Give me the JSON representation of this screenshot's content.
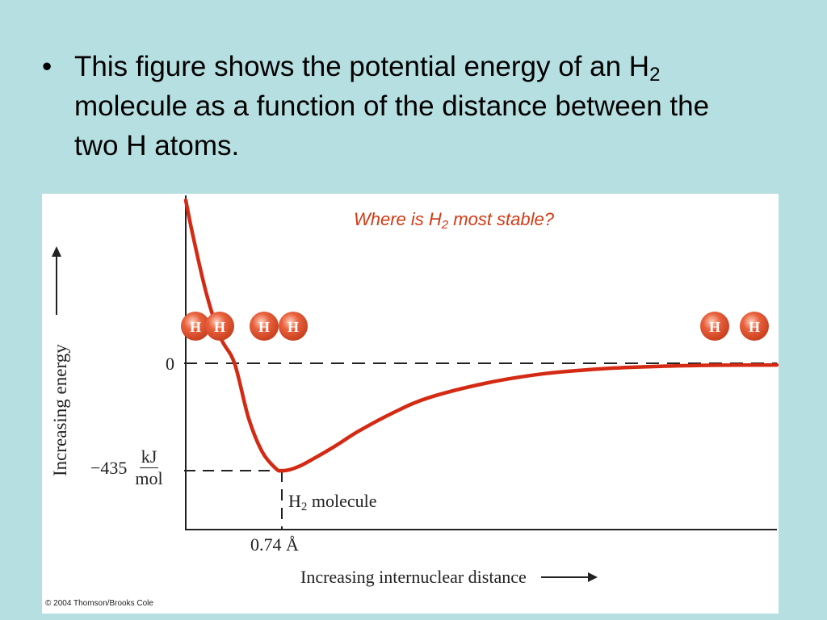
{
  "slide": {
    "bullet_symbol": "•",
    "text_part1": "This figure shows the potential energy of an H",
    "text_sub": "2",
    "text_part2": " molecule as a function of the distance between the two H atoms."
  },
  "figure": {
    "question_part1": "Where is H",
    "question_sub": "2",
    "question_part2": " most stable?",
    "credit": "© 2004 Thomson/Brooks Cole",
    "atom_label": "H",
    "colors": {
      "curve": "#d42a14",
      "atom": "#e8603c",
      "question": "#d23a14",
      "background": "#b6dfe1"
    }
  },
  "chart_data": {
    "type": "line",
    "title": "",
    "xlabel": "Increasing internuclear distance",
    "ylabel": "Increasing energy",
    "y_ticks": {
      "zero": "0",
      "minimum": "−435",
      "unit_num": "kJ",
      "unit_den": "mol"
    },
    "x_tick": "0.74 Å",
    "minimum_label_part1": "H",
    "minimum_label_sub": "2",
    "minimum_label_part2": " molecule",
    "xlim": [
      0.05,
      5.0
    ],
    "ylim": [
      -520,
      1900
    ],
    "minimum": {
      "x": 0.74,
      "y": -435
    },
    "series": [
      {
        "x": [
          0.05,
          0.1,
          0.2,
          0.3,
          0.4,
          0.5,
          0.6,
          0.7,
          0.74,
          0.8,
          0.9,
          1.0,
          1.2,
          1.4,
          1.7,
          2.0,
          2.5,
          3.0,
          3.5,
          4.0,
          4.5,
          5.0
        ],
        "y": [
          1900,
          1500,
          800,
          300,
          0,
          -220,
          -360,
          -428,
          -435,
          -432,
          -415,
          -390,
          -335,
          -275,
          -200,
          -140,
          -80,
          -42,
          -22,
          -12,
          -8,
          -7
        ]
      }
    ]
  }
}
